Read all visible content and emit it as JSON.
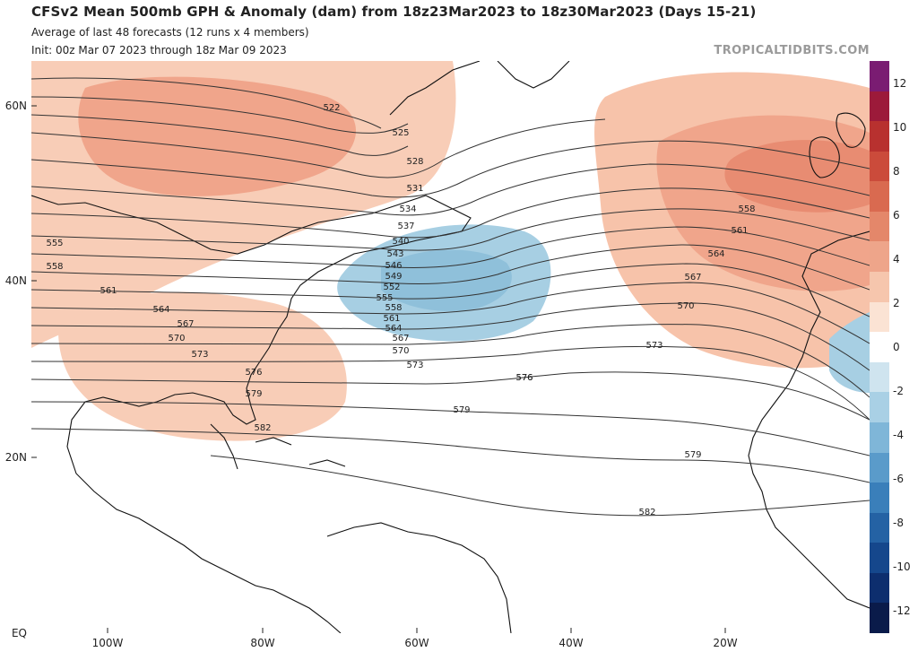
{
  "header": {
    "title": "CFSv2 Mean 500mb GPH & Anomaly (dam) from 18z23Mar2023 to 18z30Mar2023 (Days 15-21)",
    "subtitle1": "Average of last 48 forecasts (12 runs x 4 members)",
    "subtitle2": "Init: 00z Mar 07 2023 through 18z Mar 09 2023",
    "credit": "TROPICALTIDBITS.COM"
  },
  "axes": {
    "lat_labels": [
      "60N",
      "40N",
      "20N",
      "EQ"
    ],
    "lon_labels": [
      "100W",
      "80W",
      "60W",
      "40W",
      "20W"
    ]
  },
  "contour_labels": [
    "522",
    "525",
    "528",
    "531",
    "534",
    "537",
    "540",
    "543",
    "546",
    "549",
    "552",
    "555",
    "558",
    "561",
    "564",
    "567",
    "570",
    "573",
    "576",
    "579",
    "582"
  ],
  "colorbar": {
    "ticks": [
      "12",
      "10",
      "8",
      "6",
      "4",
      "2",
      "0",
      "-2",
      "-4",
      "-6",
      "-8",
      "-10",
      "-12"
    ],
    "colors": [
      "#7a1c72",
      "#9c1a3a",
      "#b8312f",
      "#cb4b3b",
      "#d96a50",
      "#e4876a",
      "#eea58a",
      "#f6c6ad",
      "#fbe3d4",
      "#ffffff",
      "#cfe4ef",
      "#a9d0e5",
      "#7fb6d8",
      "#5a9bca",
      "#3a7fba",
      "#2462a4",
      "#15478c",
      "#0d2e6e",
      "#0a1b4a"
    ],
    "accent": {
      "positive": "#eea58a",
      "negative": "#a9d0e5"
    }
  },
  "map_features": {
    "positive_anomaly_color": "#f4b79c",
    "strong_positive_color": "#e88c72",
    "negative_anomaly_color": "#a7cfe3",
    "contour_color": "#333333",
    "land_outline_color": "#111111"
  }
}
